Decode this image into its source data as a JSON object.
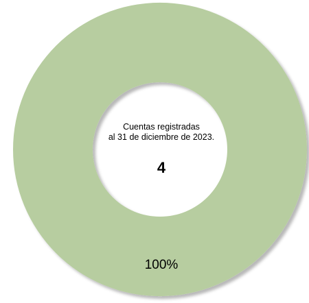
{
  "chart_data": {
    "type": "pie",
    "variant": "donut",
    "categories": [
      "Cuentas registradas"
    ],
    "values": [
      4
    ],
    "data_labels": [
      "100%"
    ],
    "colors": [
      "#b7cda0"
    ],
    "center_text": {
      "line1": "Cuentas registradas",
      "line2": "al 31 de diciembre de 2023.",
      "value": "4"
    },
    "legend": "none"
  }
}
